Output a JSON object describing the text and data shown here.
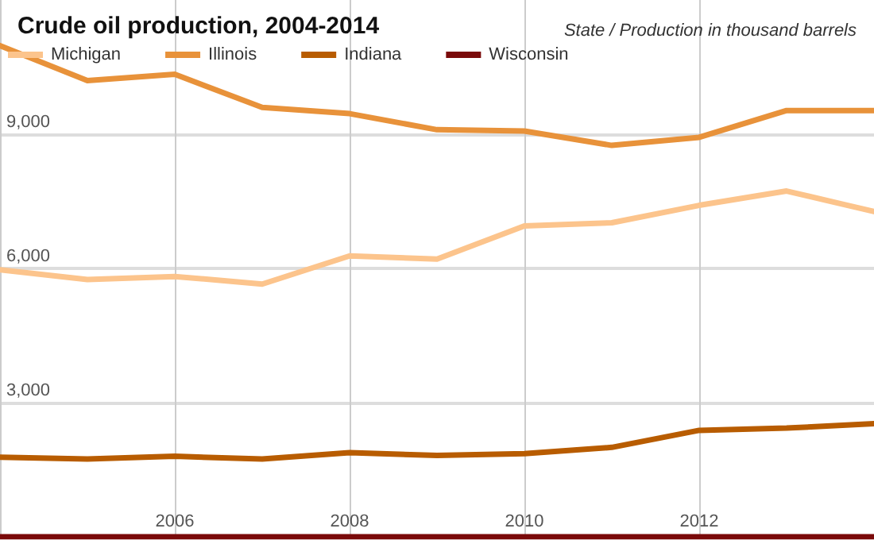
{
  "chart_data": {
    "type": "line",
    "title": "Crude oil production, 2004-2014",
    "subtitle": "State / Production in thousand barrels",
    "x": [
      2004,
      2005,
      2006,
      2007,
      2008,
      2009,
      2010,
      2011,
      2012,
      2013,
      2014
    ],
    "series": [
      {
        "name": "Michigan",
        "color": "#fcc48c",
        "values": [
          5970,
          5750,
          5820,
          5650,
          6280,
          6210,
          6950,
          7020,
          7410,
          7730,
          7270
        ]
      },
      {
        "name": "Illinois",
        "color": "#e8923a",
        "values": [
          10980,
          10200,
          10340,
          9600,
          9460,
          9100,
          9070,
          8750,
          8930,
          9530,
          9530
        ]
      },
      {
        "name": "Indiana",
        "color": "#b85c00",
        "values": [
          1780,
          1740,
          1800,
          1740,
          1880,
          1820,
          1860,
          2000,
          2380,
          2430,
          2530
        ]
      },
      {
        "name": "Wisconsin",
        "color": "#7a0a0a",
        "values": [
          0,
          0,
          0,
          0,
          0,
          0,
          0,
          0,
          0,
          0,
          0
        ]
      }
    ],
    "xlim": [
      2004,
      2014
    ],
    "xticks": [
      2006,
      2008,
      2010,
      2012
    ],
    "ylim": [
      0,
      12000
    ],
    "yticks": [
      {
        "value": 3000,
        "label": "3,000"
      },
      {
        "value": 6000,
        "label": "6,000"
      },
      {
        "value": 9000,
        "label": "9,000"
      }
    ],
    "grid": true,
    "legend": "top left",
    "marker": "none",
    "line_style": "solid"
  }
}
